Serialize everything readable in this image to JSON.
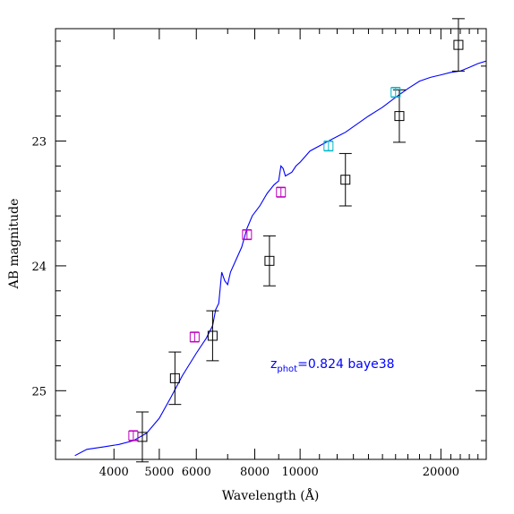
{
  "chart_data": {
    "type": "scatter",
    "xlabel": "Wavelength (Å)",
    "ylabel": "AB magnitude",
    "xscale": "log",
    "xlim": [
      3000,
      25000
    ],
    "ylim": [
      25.55,
      22.1
    ],
    "x_ticks": [
      4000,
      5000,
      6000,
      8000,
      10000,
      20000
    ],
    "x_tick_labels": [
      "4000",
      "5000",
      "6000",
      "8000",
      "10000",
      "20000"
    ],
    "y_ticks": [
      23,
      24,
      25
    ],
    "y_tick_labels": [
      "23",
      "24",
      "25"
    ],
    "grid": false,
    "colors": {
      "model": "#0000ff",
      "observed": "#000000",
      "model_mag_optical": "#c000c0",
      "model_mag_nir": "#00b8c8"
    },
    "annotation": {
      "prefix": "z",
      "subscript": "phot",
      "value": "=0.824 baye38"
    },
    "series": [
      {
        "color": "#000000",
        "marker": "open-square",
        "points": [
          {
            "x": 4600,
            "y": 25.37,
            "err": 0.2
          },
          {
            "x": 5400,
            "y": 24.9,
            "err": 0.21
          },
          {
            "x": 6500,
            "y": 24.56,
            "err": 0.2
          },
          {
            "x": 8600,
            "y": 23.96,
            "err": 0.2
          },
          {
            "x": 12500,
            "y": 23.31,
            "err": 0.21
          },
          {
            "x": 16300,
            "y": 22.8,
            "err": 0.21
          },
          {
            "x": 21800,
            "y": 22.23,
            "err": 0.21
          }
        ]
      },
      {
        "color": "#c000c0",
        "marker": "open-square",
        "points": [
          {
            "x": 4400,
            "y": 25.36,
            "err": 0.04
          },
          {
            "x": 5950,
            "y": 24.57,
            "err": 0.04
          },
          {
            "x": 7700,
            "y": 23.75,
            "err": 0.04
          },
          {
            "x": 9100,
            "y": 23.41,
            "err": 0.04
          }
        ]
      },
      {
        "color": "#00b8c8",
        "marker": "open-square",
        "points": [
          {
            "x": 11500,
            "y": 23.04,
            "err": 0.04
          },
          {
            "x": 16000,
            "y": 22.61,
            "err": 0.04
          }
        ]
      },
      {
        "color": "#0000ff",
        "marker": "line",
        "points": [
          {
            "x": 3300,
            "y": 25.52
          },
          {
            "x": 3500,
            "y": 25.47
          },
          {
            "x": 3800,
            "y": 25.45
          },
          {
            "x": 4100,
            "y": 25.43
          },
          {
            "x": 4400,
            "y": 25.4
          },
          {
            "x": 4700,
            "y": 25.34
          },
          {
            "x": 5000,
            "y": 25.22
          },
          {
            "x": 5300,
            "y": 25.05
          },
          {
            "x": 5600,
            "y": 24.88
          },
          {
            "x": 6000,
            "y": 24.7
          },
          {
            "x": 6300,
            "y": 24.58
          },
          {
            "x": 6500,
            "y": 24.48
          },
          {
            "x": 6600,
            "y": 24.35
          },
          {
            "x": 6700,
            "y": 24.3
          },
          {
            "x": 6800,
            "y": 24.05
          },
          {
            "x": 6900,
            "y": 24.12
          },
          {
            "x": 7000,
            "y": 24.15
          },
          {
            "x": 7100,
            "y": 24.05
          },
          {
            "x": 7300,
            "y": 23.95
          },
          {
            "x": 7500,
            "y": 23.85
          },
          {
            "x": 7700,
            "y": 23.7
          },
          {
            "x": 7900,
            "y": 23.6
          },
          {
            "x": 8200,
            "y": 23.52
          },
          {
            "x": 8500,
            "y": 23.42
          },
          {
            "x": 8800,
            "y": 23.35
          },
          {
            "x": 9000,
            "y": 23.32
          },
          {
            "x": 9100,
            "y": 23.2
          },
          {
            "x": 9200,
            "y": 23.22
          },
          {
            "x": 9300,
            "y": 23.28
          },
          {
            "x": 9600,
            "y": 23.25
          },
          {
            "x": 9800,
            "y": 23.2
          },
          {
            "x": 10000,
            "y": 23.17
          },
          {
            "x": 10500,
            "y": 23.08
          },
          {
            "x": 11500,
            "y": 23.0
          },
          {
            "x": 12500,
            "y": 22.93
          },
          {
            "x": 14000,
            "y": 22.8
          },
          {
            "x": 15000,
            "y": 22.73
          },
          {
            "x": 16000,
            "y": 22.65
          },
          {
            "x": 17000,
            "y": 22.58
          },
          {
            "x": 18000,
            "y": 22.52
          },
          {
            "x": 19000,
            "y": 22.49
          },
          {
            "x": 20000,
            "y": 22.47
          },
          {
            "x": 21000,
            "y": 22.45
          },
          {
            "x": 22000,
            "y": 22.44
          },
          {
            "x": 23000,
            "y": 22.41
          },
          {
            "x": 24000,
            "y": 22.38
          },
          {
            "x": 25000,
            "y": 22.36
          }
        ]
      }
    ]
  }
}
